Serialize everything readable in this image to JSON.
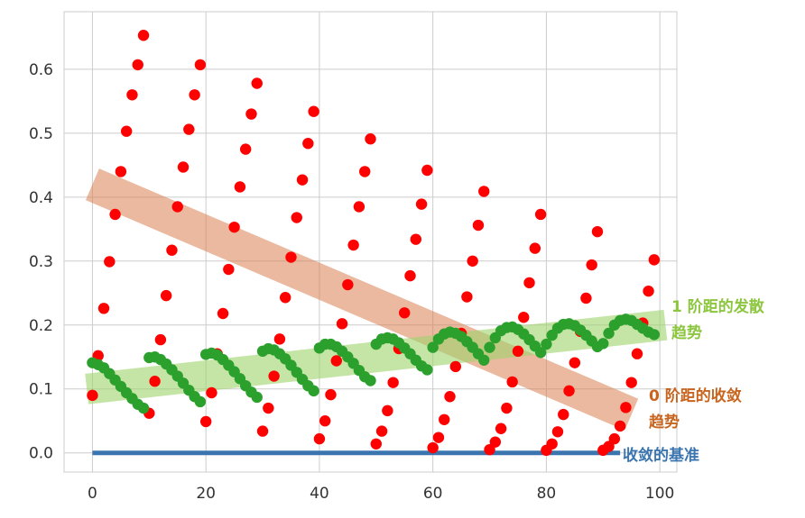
{
  "chart_data": {
    "type": "scatter",
    "title": "",
    "xlabel": "",
    "ylabel": "",
    "xlim": [
      -5,
      103
    ],
    "ylim": [
      -0.03,
      0.69
    ],
    "x_ticks": [
      0,
      20,
      40,
      60,
      80,
      100
    ],
    "x_tick_labels": [
      "0",
      "20",
      "40",
      "60",
      "80",
      "100"
    ],
    "y_ticks": [
      0.0,
      0.1,
      0.2,
      0.3,
      0.4,
      0.5,
      0.6
    ],
    "y_tick_labels": [
      "0.0",
      "0.1",
      "0.2",
      "0.3",
      "0.4",
      "0.5",
      "0.6"
    ],
    "grid": true,
    "series": [
      {
        "name": "0 阶距",
        "color": "#ff0000",
        "x": [
          0,
          1,
          2,
          3,
          4,
          5,
          6,
          7,
          8,
          9,
          10,
          11,
          12,
          13,
          14,
          15,
          16,
          17,
          18,
          19,
          20,
          21,
          22,
          23,
          24,
          25,
          26,
          27,
          28,
          29,
          30,
          31,
          32,
          33,
          34,
          35,
          36,
          37,
          38,
          39,
          40,
          41,
          42,
          43,
          44,
          45,
          46,
          47,
          48,
          49,
          50,
          51,
          52,
          53,
          54,
          55,
          56,
          57,
          58,
          59,
          60,
          61,
          62,
          63,
          64,
          65,
          66,
          67,
          68,
          69,
          70,
          71,
          72,
          73,
          74,
          75,
          76,
          77,
          78,
          79,
          80,
          81,
          82,
          83,
          84,
          85,
          86,
          87,
          88,
          89,
          90,
          91,
          92,
          93,
          94,
          95,
          96,
          97,
          98,
          99
        ],
        "y": [
          0.09,
          0.152,
          0.226,
          0.299,
          0.373,
          0.44,
          0.503,
          0.56,
          0.607,
          0.653,
          0.062,
          0.112,
          0.177,
          0.246,
          0.317,
          0.385,
          0.447,
          0.506,
          0.56,
          0.607,
          0.049,
          0.094,
          0.155,
          0.218,
          0.287,
          0.353,
          0.416,
          0.475,
          0.53,
          0.578,
          0.034,
          0.07,
          0.12,
          0.178,
          0.243,
          0.306,
          0.368,
          0.427,
          0.484,
          0.534,
          0.022,
          0.05,
          0.091,
          0.144,
          0.202,
          0.263,
          0.325,
          0.385,
          0.44,
          0.491,
          0.014,
          0.034,
          0.066,
          0.11,
          0.163,
          0.219,
          0.277,
          0.334,
          0.389,
          0.442,
          0.008,
          0.024,
          0.052,
          0.088,
          0.135,
          0.187,
          0.244,
          0.3,
          0.356,
          0.409,
          0.005,
          0.017,
          0.038,
          0.07,
          0.111,
          0.159,
          0.212,
          0.266,
          0.32,
          0.373,
          0.004,
          0.014,
          0.033,
          0.06,
          0.097,
          0.141,
          0.19,
          0.242,
          0.294,
          0.346,
          0.004,
          0.01,
          0.022,
          0.042,
          0.071,
          0.11,
          0.155,
          0.203,
          0.253,
          0.302
        ]
      },
      {
        "name": "1 阶距",
        "color": "#2ca02c",
        "x": [
          0,
          1,
          2,
          3,
          4,
          5,
          6,
          7,
          8,
          9,
          10,
          11,
          12,
          13,
          14,
          15,
          16,
          17,
          18,
          19,
          20,
          21,
          22,
          23,
          24,
          25,
          26,
          27,
          28,
          29,
          30,
          31,
          32,
          33,
          34,
          35,
          36,
          37,
          38,
          39,
          40,
          41,
          42,
          43,
          44,
          45,
          46,
          47,
          48,
          49,
          50,
          51,
          52,
          53,
          54,
          55,
          56,
          57,
          58,
          59,
          60,
          61,
          62,
          63,
          64,
          65,
          66,
          67,
          68,
          69,
          70,
          71,
          72,
          73,
          74,
          75,
          76,
          77,
          78,
          79,
          80,
          81,
          82,
          83,
          84,
          85,
          86,
          87,
          88,
          89,
          90,
          91,
          92,
          93,
          94,
          95,
          96,
          97,
          98,
          99
        ],
        "y": [
          0.141,
          0.138,
          0.133,
          0.124,
          0.114,
          0.104,
          0.094,
          0.085,
          0.076,
          0.07,
          0.149,
          0.15,
          0.146,
          0.139,
          0.13,
          0.12,
          0.109,
          0.098,
          0.088,
          0.08,
          0.154,
          0.156,
          0.153,
          0.146,
          0.137,
          0.127,
          0.116,
          0.105,
          0.095,
          0.087,
          0.159,
          0.163,
          0.161,
          0.155,
          0.147,
          0.137,
          0.126,
          0.115,
          0.105,
          0.097,
          0.164,
          0.17,
          0.17,
          0.166,
          0.159,
          0.15,
          0.14,
          0.129,
          0.119,
          0.113,
          0.17,
          0.178,
          0.18,
          0.178,
          0.172,
          0.164,
          0.155,
          0.145,
          0.136,
          0.13,
          0.165,
          0.178,
          0.186,
          0.189,
          0.187,
          0.182,
          0.174,
          0.165,
          0.155,
          0.145,
          0.165,
          0.18,
          0.191,
          0.196,
          0.197,
          0.193,
          0.186,
          0.177,
          0.167,
          0.157,
          0.17,
          0.184,
          0.195,
          0.201,
          0.202,
          0.199,
          0.192,
          0.184,
          0.175,
          0.166,
          0.171,
          0.187,
          0.2,
          0.207,
          0.209,
          0.207,
          0.201,
          0.195,
          0.189,
          0.185
        ]
      }
    ],
    "annotations": [
      {
        "type": "line",
        "name": "收敛的基准",
        "color": "#3b75af",
        "x": [
          0,
          93
        ],
        "y": [
          0.0,
          0.0
        ],
        "label": "收敛的基准"
      },
      {
        "type": "band",
        "name": "0 阶距的收敛趋势",
        "color": "#d98050",
        "x": [
          0,
          95
        ],
        "y": [
          0.42,
          0.06
        ],
        "label_lines": [
          "0 阶距的收敛",
          "趋势"
        ]
      },
      {
        "type": "band",
        "name": "1 阶距的发散趋势",
        "color": "#9ed46c",
        "x": [
          -1,
          101
        ],
        "y": [
          0.1,
          0.2
        ],
        "label_lines": [
          "1 阶距的发散",
          "趋势"
        ]
      }
    ]
  }
}
